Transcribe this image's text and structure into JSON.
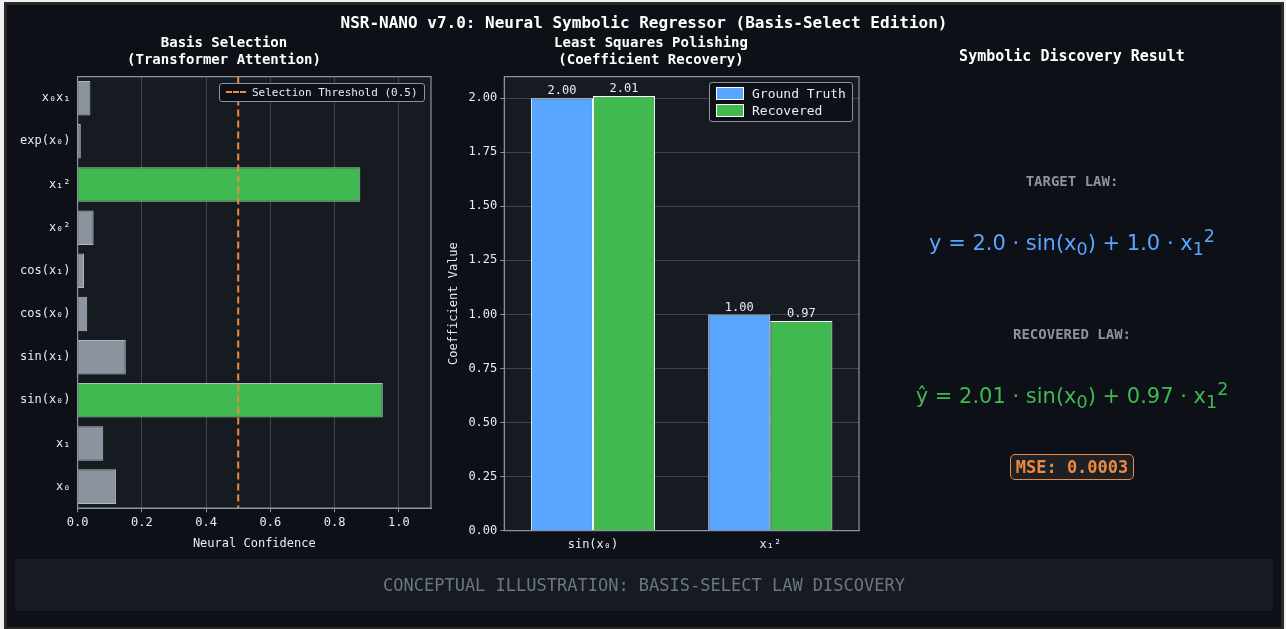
{
  "chart_data": [
    {
      "type": "other",
      "title": "NSR-NANO v7.0: Neural Symbolic Regressor (Basis-Select Edition)",
      "annotations": [
        "CONCEPTUAL ILLUSTRATION: BASIS-SELECT LAW DISCOVERY"
      ]
    },
    {
      "type": "bar",
      "orientation": "horizontal",
      "title": "Basis Selection\n(Transformer Attention)",
      "xlabel": "Neural Confidence",
      "categories": [
        "x₀x₁",
        "exp(x₀)",
        "x₁²",
        "x₀²",
        "cos(x₁)",
        "cos(x₀)",
        "sin(x₁)",
        "sin(x₀)",
        "x₁",
        "x₀"
      ],
      "values": [
        0.04,
        0.01,
        0.88,
        0.05,
        0.02,
        0.03,
        0.15,
        0.95,
        0.08,
        0.12
      ],
      "colors": [
        "#8b949e",
        "#8b949e",
        "#3fb950",
        "#8b949e",
        "#8b949e",
        "#8b949e",
        "#8b949e",
        "#3fb950",
        "#8b949e",
        "#8b949e"
      ],
      "xlim": [
        0,
        1.1
      ],
      "xticks": [
        {
          "value": 0,
          "label": "0.0"
        },
        {
          "value": 0.2,
          "label": "0.2"
        },
        {
          "value": 0.4,
          "label": "0.4"
        },
        {
          "value": 0.6,
          "label": "0.6"
        },
        {
          "value": 0.8,
          "label": "0.8"
        },
        {
          "value": 1,
          "label": "1.0"
        }
      ],
      "grid": "x",
      "legend": "top right",
      "ref_lines": [
        {
          "axis": "x",
          "value": 0.5,
          "label": "Selection Threshold (0.5)",
          "color": "#f0883e",
          "line_style": "dashed"
        }
      ]
    },
    {
      "type": "bar",
      "title": "Least Squares Polishing\n(Coefficient Recovery)",
      "ylabel": "Coefficient Value",
      "categories": [
        "sin(x₀)",
        "x₁²"
      ],
      "series": [
        {
          "name": "Ground Truth",
          "color": "#58a6ff",
          "values": [
            2.0,
            1.0
          ],
          "value_labels": [
            "2.00",
            "1.00"
          ]
        },
        {
          "name": "Recovered",
          "color": "#3fb950",
          "values": [
            2.01,
            0.97
          ],
          "value_labels": [
            "2.01",
            "0.97"
          ]
        }
      ],
      "ylim": [
        0,
        2.1
      ],
      "yticks": [
        {
          "value": 0,
          "label": "0.00"
        },
        {
          "value": 0.25,
          "label": "0.25"
        },
        {
          "value": 0.5,
          "label": "0.50"
        },
        {
          "value": 0.75,
          "label": "0.75"
        },
        {
          "value": 1,
          "label": "1.00"
        },
        {
          "value": 1.25,
          "label": "1.25"
        },
        {
          "value": 1.5,
          "label": "1.50"
        },
        {
          "value": 1.75,
          "label": "1.75"
        },
        {
          "value": 2,
          "label": "2.00"
        }
      ],
      "grid": "y",
      "legend": "top right"
    },
    {
      "type": "other",
      "title": "Symbolic Discovery Result",
      "annotations": [
        "TARGET LAW:",
        "y = 2.0 · sin(x$_{0}$) + 1.0 · x$_{1}$$^{2}$",
        "RECOVERED LAW:",
        "ŷ = 2.01 · sin(x$_{0}$) + 0.97 · x$_{1}$$^{2}$",
        "MSE: 0.0003"
      ]
    }
  ]
}
